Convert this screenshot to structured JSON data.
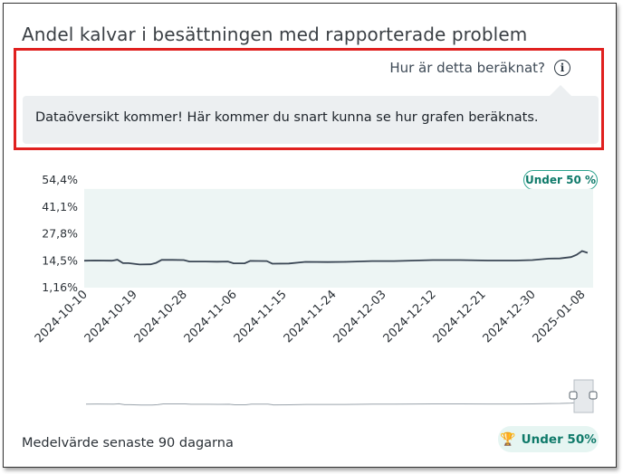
{
  "card": {
    "title": "Andel kalvar i besättningen med rapporterade problem"
  },
  "help": {
    "link_label": "Hur är detta beräknat?",
    "icon": "info-icon",
    "popover_text": "Dataöversikt kommer! Här kommer du snart kunna se hur grafen beräknats."
  },
  "badges": {
    "chart_badge": "Under 50 %",
    "footer_badge": "Under 50%",
    "footer_icon": "trophy-icon"
  },
  "footer": {
    "label": "Medelvärde senaste 90 dagarna"
  },
  "colors": {
    "highlight_border": "#e0201f",
    "line": "#3a4654",
    "band": "#edf5f4",
    "badge_text": "#0f7a6a",
    "badge_border": "#2aa18c"
  },
  "chart_data": {
    "type": "line",
    "title": "",
    "xlabel": "",
    "ylabel": "",
    "y_ticks": [
      "54,4%",
      "41,1%",
      "27,8%",
      "14,5%",
      "1,16%"
    ],
    "ylim": [
      1.16,
      54.4
    ],
    "x_ticks": [
      "2024-10-10",
      "2024-10-19",
      "2024-10-28",
      "2024-11-06",
      "2024-11-15",
      "2024-11-24",
      "2024-12-03",
      "2024-12-12",
      "2024-12-21",
      "2024-12-30",
      "2025-01-08"
    ],
    "x_range": [
      "2024-10-10",
      "2025-01-10"
    ],
    "shaded_band": [
      1.16,
      50
    ],
    "series": [
      {
        "x": [
          "2024-10-10",
          "2024-10-12",
          "2024-10-15",
          "2024-10-16",
          "2024-10-17",
          "2024-10-18",
          "2024-10-20",
          "2024-10-22",
          "2024-10-23",
          "2024-10-24",
          "2024-10-26",
          "2024-10-28",
          "2024-10-29",
          "2024-11-01",
          "2024-11-03",
          "2024-11-05",
          "2024-11-06",
          "2024-11-08",
          "2024-11-09",
          "2024-11-12",
          "2024-11-13",
          "2024-11-16",
          "2024-11-19",
          "2024-11-23",
          "2024-11-26",
          "2024-12-01",
          "2024-12-05",
          "2024-12-12",
          "2024-12-17",
          "2024-12-22",
          "2024-12-27",
          "2024-12-30",
          "2025-01-02",
          "2025-01-04",
          "2025-01-06",
          "2025-01-07",
          "2025-01-08",
          "2025-01-09"
        ],
        "y": [
          14.5,
          14.6,
          14.5,
          15.0,
          13.3,
          13.3,
          12.6,
          12.7,
          13.4,
          14.9,
          14.9,
          14.8,
          14.1,
          14.1,
          14.0,
          14.1,
          13.2,
          13.2,
          14.4,
          14.3,
          13.0,
          13.1,
          13.9,
          13.8,
          13.9,
          14.3,
          14.3,
          14.8,
          14.8,
          14.6,
          14.6,
          14.8,
          15.5,
          15.6,
          16.3,
          17.4,
          19.3,
          18.4
        ]
      }
    ],
    "grid": false,
    "legend": "none"
  }
}
